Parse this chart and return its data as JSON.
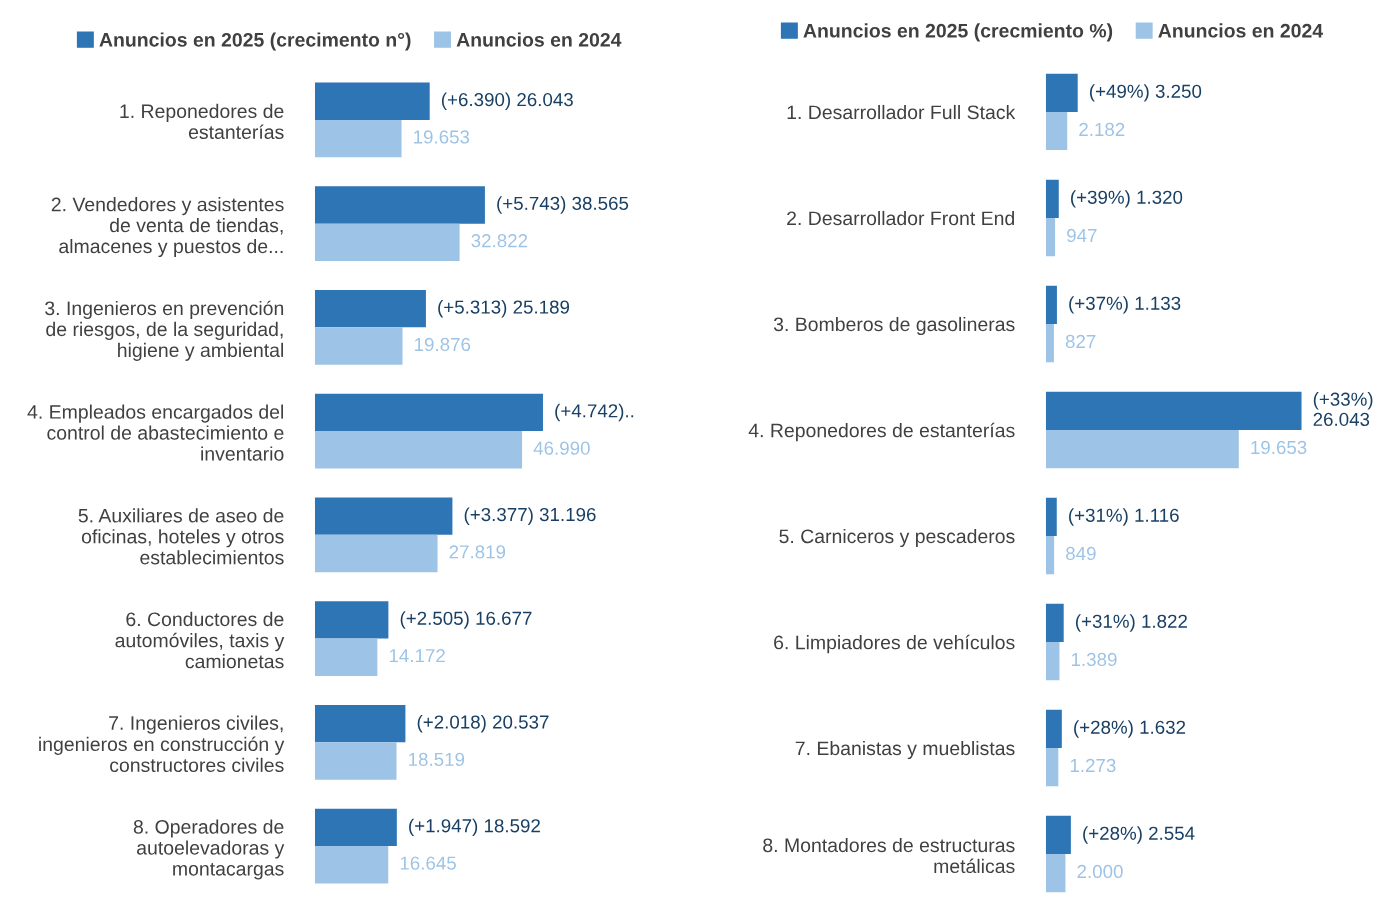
{
  "chart_data": [
    {
      "type": "bar",
      "orientation": "horizontal",
      "legend": "top",
      "tick_labels": "y",
      "grid": false,
      "annotations": [
        {
          "text": "(+4.742)..",
          "x": 51732,
          "y": "4. Empleados encargados del\ncontrol de abastecimiento e\ninventario"
        }
      ],
      "categories": [
        "1. Reponedores de\nestanterías",
        "2. Vendedores y asistentes\nde venta de tiendas,\nalmacenes y puestos de...",
        "3. Ingenieros en prevención\nde riesgos, de la seguridad,\nhigiene y ambiental",
        "4. Empleados encargados del\ncontrol de abastecimiento e\ninventario",
        "5. Auxiliares de aseo de\noficinas, hoteles y otros\nestablecimientos",
        "6. Conductores de\nautomóviles, taxis y\ncamionetas",
        "7. Ingenieros civiles,\ningenieros en construcción y\nconstructores civiles",
        "8. Operadores de\nautoelevadoras y\nmontacargas"
      ],
      "series": [
        {
          "name": "Anuncios en 2025 (crecimento n°)",
          "color": "#2e75b6",
          "values": [
            26043,
            38565,
            25189,
            51732,
            31196,
            16677,
            20537,
            18592
          ],
          "value_labels": [
            "(+6.390) 26.043",
            "(+5.743) 38.565",
            "(+5.313) 25.189",
            null,
            "(+3.377) 31.196",
            "(+2.505) 16.677",
            "(+2.018) 20.537",
            "(+1.947) 18.592"
          ]
        },
        {
          "name": "Anuncios en 2024",
          "color": "#9dc3e6",
          "values": [
            19653,
            32822,
            19876,
            46990,
            27819,
            14172,
            18519,
            16645
          ],
          "value_labels": [
            "19.653",
            "32.822",
            "19.876",
            "46.990",
            "27.819",
            "14.172",
            "18.519",
            "16.645"
          ]
        }
      ]
    },
    {
      "type": "bar",
      "orientation": "horizontal",
      "legend": "top",
      "tick_labels": "y",
      "grid": false,
      "categories": [
        "1. Desarrollador Full Stack",
        "2. Desarrollador Front End",
        "3. Bomberos de gasolineras",
        "4. Reponedores de estanterías",
        "5. Carniceros y pescaderos",
        "6. Limpiadores de vehículos",
        "7. Ebanistas y mueblistas",
        "8. Montadores de estructuras\nmetálicas"
      ],
      "series": [
        {
          "name": "Anuncios en 2025 (crecmiento %)",
          "color": "#2e75b6",
          "values": [
            3250,
            1320,
            1133,
            26043,
            1116,
            1822,
            1632,
            2554
          ],
          "value_labels": [
            "(+49%) 3.250",
            "(+39%) 1.320",
            "(+37%) 1.133",
            "(+33%)\n26.043",
            "(+31%) 1.116",
            "(+31%) 1.822",
            "(+28%) 1.632",
            "(+28%) 2.554"
          ]
        },
        {
          "name": "Anuncios en 2024",
          "color": "#9dc3e6",
          "values": [
            2182,
            947,
            827,
            19653,
            849,
            1389,
            1273,
            2000
          ],
          "value_labels": [
            "2.182",
            "947",
            "827",
            "19.653",
            "849",
            "1.389",
            "1.273",
            "2.000"
          ]
        }
      ]
    }
  ]
}
